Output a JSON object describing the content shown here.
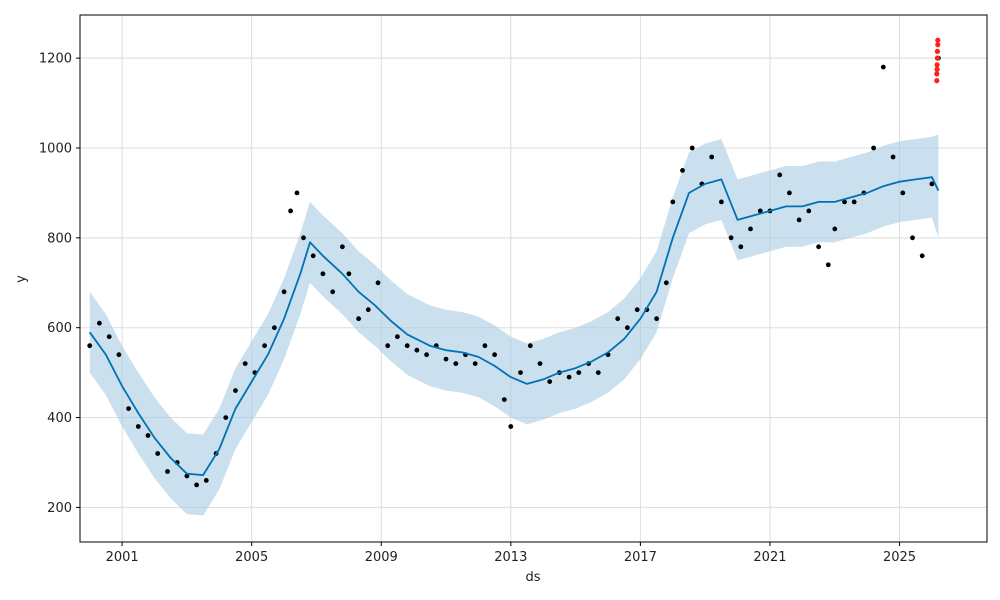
{
  "chart_data": {
    "type": "scatter",
    "xlabel": "ds",
    "ylabel": "y",
    "xlim": [
      1999.7,
      2027.7
    ],
    "ylim": [
      123,
      1296
    ],
    "x_ticks": [
      {
        "value": 2001,
        "label": "2001"
      },
      {
        "value": 2005,
        "label": "2005"
      },
      {
        "value": 2009,
        "label": "2009"
      },
      {
        "value": 2013,
        "label": "2013"
      },
      {
        "value": 2017,
        "label": "2017"
      },
      {
        "value": 2021,
        "label": "2021"
      },
      {
        "value": 2025,
        "label": "2025"
      }
    ],
    "y_ticks": [
      {
        "value": 200,
        "label": "200"
      },
      {
        "value": 400,
        "label": "400"
      },
      {
        "value": 600,
        "label": "600"
      },
      {
        "value": 800,
        "label": "800"
      },
      {
        "value": 1000,
        "label": "1000"
      },
      {
        "value": 1200,
        "label": "1200"
      }
    ],
    "grid": true,
    "colors": {
      "observed": "#000000",
      "forecast_line": "#0072B2",
      "uncertainty_band": "#a9cce3",
      "highlight": "#ff2020"
    },
    "series": [
      {
        "kind": "observed_points",
        "x": [
          2000.0,
          2000.3,
          2000.6,
          2000.9,
          2001.2,
          2001.5,
          2001.8,
          2002.1,
          2002.4,
          2002.7,
          2003.0,
          2003.3,
          2003.6,
          2003.9,
          2004.2,
          2004.5,
          2004.8,
          2005.1,
          2005.4,
          2005.7,
          2006.0,
          2006.2,
          2006.4,
          2006.6,
          2006.9,
          2007.2,
          2007.5,
          2007.8,
          2008.0,
          2008.3,
          2008.6,
          2008.9,
          2009.2,
          2009.5,
          2009.8,
          2010.1,
          2010.4,
          2010.7,
          2011.0,
          2011.3,
          2011.6,
          2011.9,
          2012.2,
          2012.5,
          2012.8,
          2013.0,
          2013.3,
          2013.6,
          2013.9,
          2014.2,
          2014.5,
          2014.8,
          2015.1,
          2015.4,
          2015.7,
          2016.0,
          2016.3,
          2016.6,
          2016.9,
          2017.2,
          2017.5,
          2017.8,
          2018.0,
          2018.3,
          2018.6,
          2018.9,
          2019.2,
          2019.5,
          2019.8,
          2020.1,
          2020.4,
          2020.7,
          2021.0,
          2021.3,
          2021.6,
          2021.9,
          2022.2,
          2022.5,
          2022.8,
          2023.0,
          2023.3,
          2023.6,
          2023.9,
          2024.2,
          2024.5,
          2024.8,
          2025.1,
          2025.4,
          2025.7,
          2026.0,
          2026.2
        ],
        "y": [
          560,
          610,
          580,
          540,
          420,
          380,
          360,
          320,
          280,
          300,
          270,
          250,
          260,
          320,
          400,
          460,
          520,
          500,
          560,
          600,
          680,
          860,
          900,
          800,
          760,
          720,
          680,
          780,
          720,
          620,
          640,
          700,
          560,
          580,
          560,
          550,
          540,
          560,
          530,
          520,
          540,
          520,
          560,
          540,
          440,
          380,
          500,
          560,
          520,
          480,
          500,
          490,
          500,
          520,
          500,
          540,
          620,
          600,
          640,
          640,
          620,
          700,
          880,
          950,
          1000,
          920,
          980,
          880,
          800,
          780,
          820,
          860,
          860,
          940,
          900,
          840,
          860,
          780,
          740,
          820,
          880,
          880,
          900,
          1000,
          1180,
          980,
          900,
          800,
          760,
          920,
          1200
        ]
      },
      {
        "kind": "forecast_line",
        "x": [
          2000.0,
          2000.5,
          2001.0,
          2001.5,
          2002.0,
          2002.5,
          2003.0,
          2003.5,
          2004.0,
          2004.5,
          2005.0,
          2005.5,
          2006.0,
          2006.5,
          2006.8,
          2007.2,
          2007.8,
          2008.3,
          2008.8,
          2009.3,
          2009.8,
          2010.5,
          2011.0,
          2011.5,
          2012.0,
          2012.5,
          2013.0,
          2013.5,
          2014.0,
          2014.5,
          2015.0,
          2015.5,
          2016.0,
          2016.5,
          2017.0,
          2017.5,
          2018.0,
          2018.5,
          2019.0,
          2019.5,
          2020.0,
          2020.5,
          2021.0,
          2021.5,
          2022.0,
          2022.5,
          2023.0,
          2023.5,
          2024.0,
          2024.5,
          2025.0,
          2025.5,
          2026.0,
          2026.2
        ],
        "y": [
          590,
          540,
          470,
          410,
          355,
          310,
          275,
          272,
          330,
          420,
          480,
          540,
          620,
          720,
          790,
          760,
          720,
          680,
          650,
          615,
          585,
          560,
          550,
          545,
          535,
          515,
          490,
          475,
          485,
          500,
          510,
          525,
          545,
          575,
          620,
          680,
          800,
          900,
          920,
          930,
          840,
          850,
          860,
          870,
          870,
          880,
          880,
          890,
          900,
          915,
          925,
          930,
          935,
          905
        ]
      },
      {
        "kind": "uncertainty_band",
        "x": [
          2000.0,
          2000.5,
          2001.0,
          2001.5,
          2002.0,
          2002.5,
          2003.0,
          2003.5,
          2004.0,
          2004.5,
          2005.0,
          2005.5,
          2006.0,
          2006.5,
          2006.8,
          2007.2,
          2007.8,
          2008.3,
          2008.8,
          2009.3,
          2009.8,
          2010.5,
          2011.0,
          2011.5,
          2012.0,
          2012.5,
          2013.0,
          2013.5,
          2014.0,
          2014.5,
          2015.0,
          2015.5,
          2016.0,
          2016.5,
          2017.0,
          2017.5,
          2018.0,
          2018.5,
          2019.0,
          2019.5,
          2020.0,
          2020.5,
          2021.0,
          2021.5,
          2022.0,
          2022.5,
          2023.0,
          2023.5,
          2024.0,
          2024.5,
          2025.0,
          2025.5,
          2026.0,
          2026.2
        ],
        "lower": [
          500,
          450,
          380,
          320,
          265,
          220,
          185,
          182,
          240,
          330,
          390,
          450,
          530,
          630,
          700,
          670,
          630,
          590,
          560,
          525,
          495,
          470,
          460,
          455,
          445,
          425,
          400,
          385,
          395,
          410,
          420,
          435,
          455,
          485,
          530,
          590,
          710,
          810,
          830,
          840,
          750,
          760,
          770,
          780,
          780,
          790,
          790,
          800,
          810,
          825,
          835,
          840,
          845,
          800
        ],
        "upper": [
          680,
          630,
          560,
          500,
          445,
          400,
          365,
          362,
          420,
          510,
          570,
          630,
          710,
          810,
          880,
          850,
          810,
          770,
          740,
          705,
          675,
          650,
          640,
          635,
          625,
          605,
          580,
          565,
          575,
          590,
          600,
          615,
          635,
          665,
          710,
          770,
          890,
          990,
          1010,
          1020,
          930,
          940,
          950,
          960,
          960,
          970,
          970,
          980,
          990,
          1005,
          1015,
          1020,
          1025,
          1030
        ]
      },
      {
        "kind": "highlighted_points",
        "x": [
          2026.15,
          2026.15,
          2026.16,
          2026.16,
          2026.17,
          2026.17,
          2026.18,
          2026.18
        ],
        "y": [
          1150,
          1165,
          1175,
          1185,
          1200,
          1215,
          1230,
          1240
        ]
      }
    ]
  }
}
